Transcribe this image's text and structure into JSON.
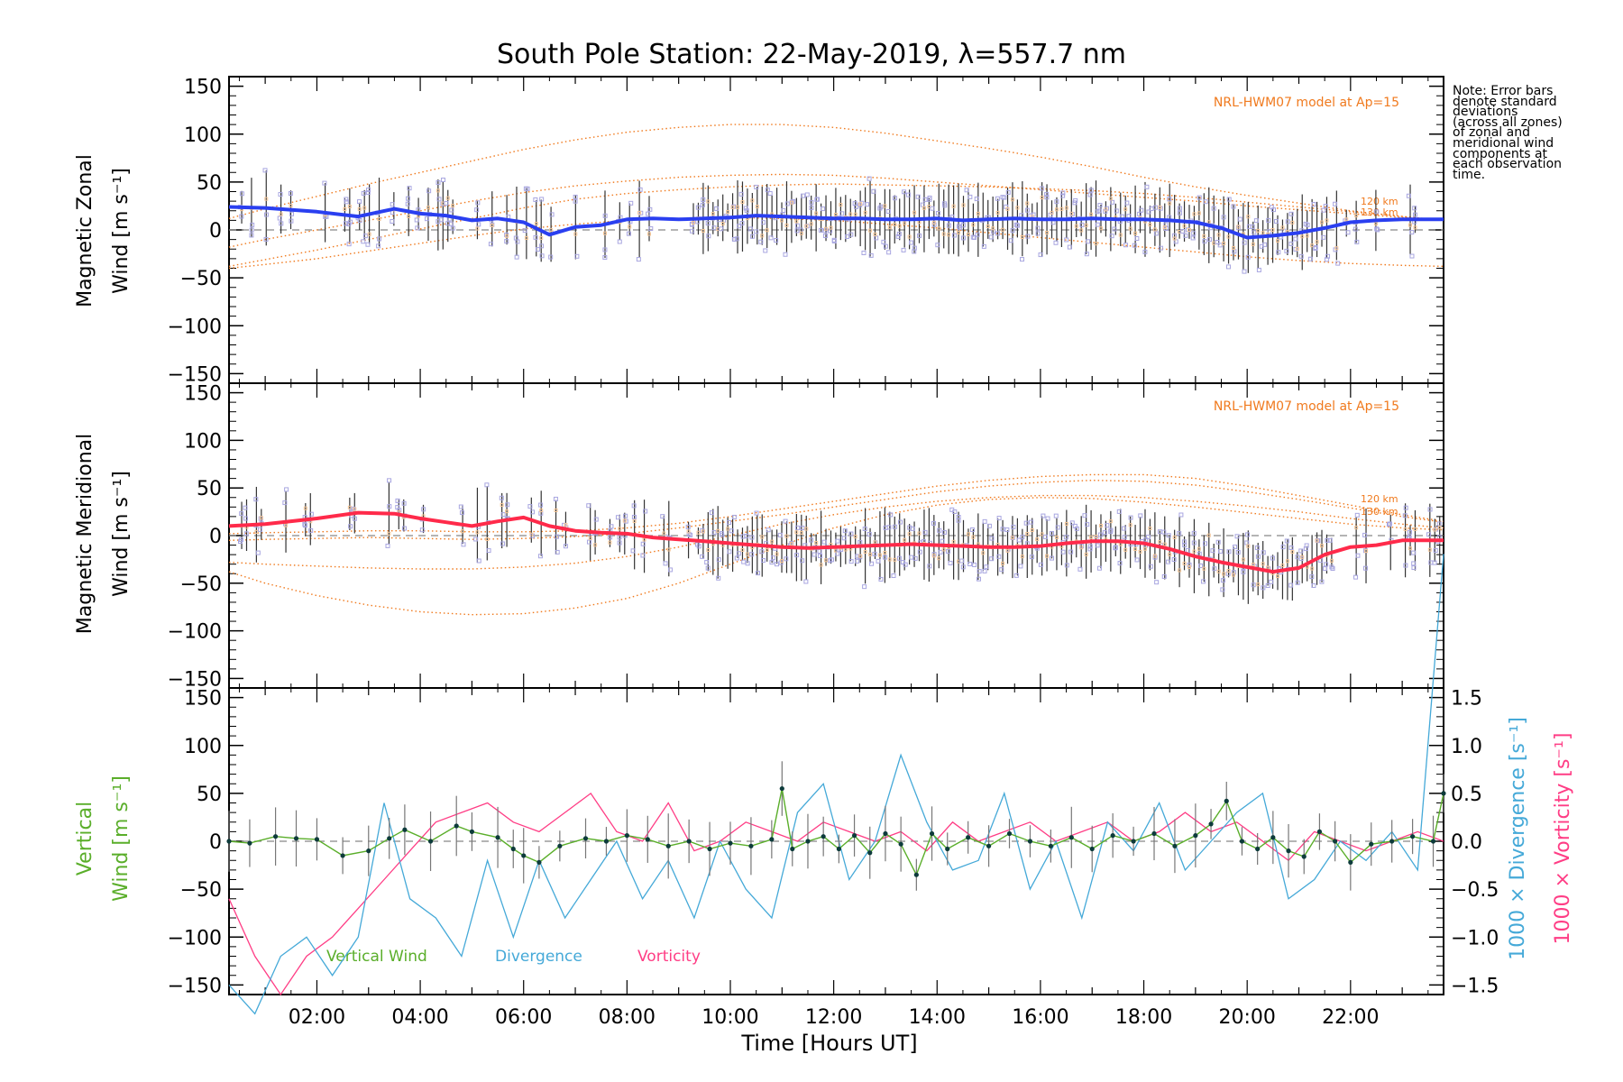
{
  "title": "South Pole Station: 22-May-2019, λ=557.7 nm",
  "note_lines": [
    "Note: Error bars",
    "denote standard",
    "deviations",
    "(across all zones)",
    "of zonal and",
    "meridional wind",
    "components at",
    "each observation",
    "time."
  ],
  "colors": {
    "zonal": "#2a3ff0",
    "zonal_light": "#3a9ff0",
    "meridional": "#ff2a4a",
    "meridional_light": "#ff6f86",
    "vertical": "#5aae2a",
    "divergence": "#45a9d8",
    "vorticity": "#ff3d85",
    "model": "#f07a1e",
    "scatter": "#a8a6e0",
    "errbar": "#333333",
    "point": "#0d3b3b"
  },
  "chart_data": [
    {
      "type": "line",
      "name": "zonal",
      "ylabel_lines": [
        "Magnetic Zonal",
        "Wind [m s⁻¹]"
      ],
      "ylim": [
        -160,
        160
      ],
      "yticks": [
        150,
        100,
        50,
        0,
        -50,
        -100,
        -150
      ],
      "ytick_labels": [
        "150",
        "100",
        "50",
        "0",
        "−50",
        "−100",
        "−150"
      ],
      "xlim": [
        0.3,
        23.8
      ],
      "model_label": "NRL-HWM07 model at Ap=15",
      "model_alt_labels": [
        "120 km",
        "130 km"
      ],
      "series": [
        {
          "name": "Zonal wind",
          "x": [
            0.3,
            1.0,
            2.0,
            2.8,
            3.5,
            4.0,
            4.5,
            5.0,
            5.5,
            6.0,
            6.5,
            7.0,
            7.5,
            8.0,
            8.5,
            9.0,
            9.5,
            10.0,
            10.5,
            11.0,
            11.5,
            12.0,
            12.5,
            13.0,
            13.5,
            14.0,
            14.5,
            15.0,
            15.5,
            16.0,
            16.5,
            17.0,
            17.5,
            18.0,
            18.5,
            19.0,
            19.5,
            20.0,
            20.5,
            21.0,
            21.5,
            22.0,
            22.5,
            23.0,
            23.8
          ],
          "y": [
            24,
            23,
            19,
            14,
            22,
            17,
            15,
            10,
            12,
            8,
            -5,
            3,
            5,
            11,
            12,
            11,
            12,
            13,
            15,
            14,
            13,
            12,
            12,
            11,
            11,
            12,
            10,
            11,
            12,
            11,
            11,
            12,
            11,
            11,
            10,
            8,
            2,
            -8,
            -6,
            -3,
            2,
            8,
            10,
            11,
            11
          ]
        },
        {
          "name": "NRL-HWM07 120 km",
          "x": [
            0.3,
            1,
            2,
            3,
            4,
            5,
            6,
            7,
            8,
            9,
            10,
            11,
            12,
            13,
            14,
            15,
            16,
            17,
            18,
            19,
            20,
            21,
            22,
            23,
            23.8
          ],
          "y": [
            -38,
            -31,
            -21,
            -10,
            1,
            12,
            23,
            32,
            38,
            42,
            45,
            47,
            48,
            47,
            46,
            45,
            43,
            41,
            38,
            34,
            29,
            24,
            19,
            14,
            10
          ]
        },
        {
          "name": "NRL-HWM07 130 km",
          "x": [
            0.3,
            1,
            2,
            3,
            4,
            5,
            6,
            7,
            8,
            9,
            10,
            11,
            12,
            13,
            14,
            15,
            16,
            17,
            18,
            19,
            20,
            21,
            22,
            23,
            23.8
          ],
          "y": [
            -18,
            -10,
            0,
            10,
            20,
            30,
            39,
            46,
            51,
            55,
            57,
            58,
            57,
            54,
            50,
            46,
            42,
            38,
            34,
            30,
            25,
            21,
            17,
            13,
            10
          ]
        },
        {
          "name": "NRL-HWM07 upper",
          "x": [
            0.3,
            1,
            2,
            3,
            4,
            5,
            6,
            7,
            8,
            9,
            10,
            11,
            12,
            13,
            14,
            15,
            16,
            17,
            18,
            19,
            20,
            21,
            22,
            23,
            23.8
          ],
          "y": [
            12,
            22,
            35,
            48,
            60,
            72,
            84,
            94,
            102,
            107,
            110,
            110,
            107,
            101,
            93,
            85,
            76,
            66,
            55,
            45,
            36,
            28,
            20,
            14,
            10
          ]
        },
        {
          "name": "NRL-HWM07 lower",
          "x": [
            0.3,
            1,
            2,
            3,
            4,
            5,
            6,
            7,
            8,
            9,
            10,
            11,
            12,
            13,
            14,
            15,
            16,
            17,
            18,
            19,
            20,
            21,
            22,
            23,
            23.8
          ],
          "y": [
            -40,
            -36,
            -30,
            -22,
            -14,
            -6,
            1,
            6,
            10,
            12,
            13,
            12,
            10,
            6,
            2,
            -3,
            -8,
            -13,
            -18,
            -23,
            -28,
            -32,
            -35,
            -37,
            -38
          ]
        }
      ]
    },
    {
      "type": "line",
      "name": "meridional",
      "ylabel_lines": [
        "Magnetic Meridional",
        "Wind [m s⁻¹]"
      ],
      "ylim": [
        -160,
        160
      ],
      "yticks": [
        150,
        100,
        50,
        0,
        -50,
        -100,
        -150
      ],
      "ytick_labels": [
        "150",
        "100",
        "50",
        "0",
        "−50",
        "−100",
        "−150"
      ],
      "xlim": [
        0.3,
        23.8
      ],
      "model_label": "NRL-HWM07 model at Ap=15",
      "model_alt_labels": [
        "120 km",
        "130 km"
      ],
      "series": [
        {
          "name": "Meridional wind",
          "x": [
            0.3,
            1.0,
            2.0,
            2.8,
            3.5,
            4.0,
            4.5,
            5.0,
            5.5,
            6.0,
            6.5,
            7.0,
            7.5,
            8.0,
            8.5,
            9.0,
            9.5,
            10.0,
            10.5,
            11.0,
            11.5,
            12.0,
            12.5,
            13.0,
            13.5,
            14.0,
            14.5,
            15.0,
            15.5,
            16.0,
            16.5,
            17.0,
            17.5,
            18.0,
            18.5,
            19.0,
            19.5,
            20.0,
            20.5,
            21.0,
            21.5,
            22.0,
            22.5,
            23.0,
            23.8
          ],
          "y": [
            10,
            12,
            18,
            24,
            23,
            18,
            14,
            10,
            15,
            19,
            10,
            5,
            3,
            2,
            -2,
            -4,
            -6,
            -8,
            -10,
            -12,
            -13,
            -12,
            -11,
            -10,
            -9,
            -10,
            -11,
            -12,
            -12,
            -11,
            -8,
            -6,
            -6,
            -8,
            -14,
            -22,
            -28,
            -33,
            -38,
            -34,
            -20,
            -12,
            -10,
            -5,
            -5
          ]
        },
        {
          "name": "NRL-HWM07 120 km",
          "x": [
            0.3,
            1,
            2,
            3,
            4,
            5,
            6,
            7,
            8,
            9,
            10,
            11,
            12,
            13,
            14,
            15,
            16,
            17,
            18,
            19,
            20,
            21,
            22,
            23,
            23.8
          ],
          "y": [
            2,
            3,
            4,
            5,
            5,
            4,
            4,
            5,
            8,
            13,
            20,
            28,
            36,
            44,
            52,
            58,
            62,
            64,
            64,
            60,
            52,
            42,
            32,
            22,
            15
          ]
        },
        {
          "name": "NRL-HWM07 130 km",
          "x": [
            0.3,
            1,
            2,
            3,
            4,
            5,
            6,
            7,
            8,
            9,
            10,
            11,
            12,
            13,
            14,
            15,
            16,
            17,
            18,
            19,
            20,
            21,
            22,
            23,
            23.8
          ],
          "y": [
            -5,
            -4,
            -3,
            -2,
            -3,
            -4,
            -3,
            -1,
            2,
            8,
            15,
            22,
            30,
            38,
            46,
            52,
            56,
            58,
            57,
            53,
            46,
            38,
            29,
            20,
            14
          ]
        },
        {
          "name": "NRL-HWM07 lower",
          "x": [
            0.3,
            1,
            2,
            3,
            4,
            5,
            6,
            7,
            8,
            9,
            10,
            11,
            12,
            13,
            14,
            15,
            16,
            17,
            18,
            19,
            20,
            21,
            22,
            23,
            23.8
          ],
          "y": [
            -38,
            -50,
            -63,
            -73,
            -80,
            -83,
            -82,
            -76,
            -66,
            -50,
            -30,
            -10,
            8,
            22,
            32,
            38,
            40,
            39,
            35,
            30,
            24,
            18,
            12,
            8,
            6
          ]
        },
        {
          "name": "NRL-HWM07 mid",
          "x": [
            0.3,
            1,
            2,
            3,
            4,
            5,
            6,
            7,
            8,
            9,
            10,
            11,
            12,
            13,
            14,
            15,
            16,
            17,
            18,
            19,
            20,
            21,
            22,
            23,
            23.8
          ],
          "y": [
            -28,
            -30,
            -32,
            -34,
            -35,
            -35,
            -33,
            -29,
            -22,
            -12,
            0,
            12,
            22,
            30,
            36,
            40,
            42,
            42,
            40,
            36,
            31,
            25,
            18,
            12,
            8
          ]
        }
      ]
    },
    {
      "type": "line",
      "name": "vertical",
      "ylabel_lines": [
        "Vertical",
        "Wind [m s⁻¹]"
      ],
      "ylim": [
        -160,
        160
      ],
      "yticks": [
        150,
        100,
        50,
        0,
        -50,
        -100,
        -150
      ],
      "ytick_labels": [
        "150",
        "100",
        "50",
        "0",
        "−50",
        "−100",
        "−150"
      ],
      "y2lim": [
        -1.6,
        1.6
      ],
      "y2ticks": [
        1.5,
        1.0,
        0.5,
        0.0,
        -0.5,
        -1.0,
        -1.5
      ],
      "y2tick_labels": [
        "1.5",
        "1.0",
        "0.5",
        "0.0",
        "−0.5",
        "−1.0",
        "−1.5"
      ],
      "y2label_div": "1000 × Divergence [s⁻¹]",
      "y2label_vort": "1000 × Vorticity [s⁻¹]",
      "xlim": [
        0.3,
        23.8
      ],
      "xticks": [
        2,
        4,
        6,
        8,
        10,
        12,
        14,
        16,
        18,
        20,
        22
      ],
      "xtick_labels": [
        "02:00",
        "04:00",
        "06:00",
        "08:00",
        "10:00",
        "12:00",
        "14:00",
        "16:00",
        "18:00",
        "20:00",
        "22:00"
      ],
      "xlabel": "Time [Hours UT]",
      "legend": [
        "Vertical Wind",
        "Divergence",
        "Vorticity"
      ],
      "series": [
        {
          "name": "Vertical Wind",
          "x": [
            0.3,
            0.7,
            1.2,
            1.6,
            2.0,
            2.5,
            3.0,
            3.4,
            3.7,
            4.2,
            4.7,
            5.0,
            5.5,
            5.8,
            6.0,
            6.3,
            6.7,
            7.2,
            7.6,
            8.0,
            8.4,
            8.8,
            9.2,
            9.6,
            10.0,
            10.4,
            10.8,
            11.0,
            11.2,
            11.5,
            11.8,
            12.1,
            12.4,
            12.7,
            13.0,
            13.3,
            13.6,
            13.9,
            14.2,
            14.6,
            15.0,
            15.4,
            15.8,
            16.2,
            16.6,
            17.0,
            17.4,
            17.8,
            18.2,
            18.6,
            19.0,
            19.3,
            19.6,
            19.9,
            20.2,
            20.5,
            20.8,
            21.1,
            21.4,
            21.7,
            22.0,
            22.4,
            22.8,
            23.2,
            23.6,
            23.8
          ],
          "y": [
            0,
            -2,
            5,
            3,
            2,
            -15,
            -10,
            3,
            12,
            0,
            16,
            10,
            4,
            -8,
            -15,
            -22,
            -5,
            3,
            0,
            6,
            2,
            -5,
            0,
            -8,
            -2,
            -5,
            2,
            55,
            -8,
            0,
            5,
            -8,
            6,
            -12,
            8,
            -3,
            -35,
            8,
            -8,
            4,
            -5,
            8,
            0,
            -5,
            4,
            -8,
            6,
            0,
            8,
            -5,
            6,
            18,
            42,
            0,
            -8,
            4,
            -10,
            -16,
            10,
            0,
            -22,
            -3,
            0,
            5,
            0,
            50
          ]
        },
        {
          "name": "Divergence",
          "x": [
            0.3,
            0.8,
            1.3,
            1.8,
            2.3,
            2.8,
            3.3,
            3.8,
            4.3,
            4.8,
            5.3,
            5.8,
            6.3,
            6.8,
            7.3,
            7.8,
            8.3,
            8.8,
            9.3,
            9.8,
            10.3,
            10.8,
            11.3,
            11.8,
            12.3,
            12.8,
            13.3,
            13.8,
            14.3,
            14.8,
            15.3,
            15.8,
            16.3,
            16.8,
            17.3,
            17.8,
            18.3,
            18.8,
            19.3,
            19.8,
            20.3,
            20.8,
            21.3,
            21.8,
            22.3,
            22.8,
            23.3,
            23.8
          ],
          "y": [
            -1.5,
            -1.8,
            -1.2,
            -1.0,
            -1.4,
            -1.0,
            0.4,
            -0.6,
            -0.8,
            -1.2,
            -0.2,
            -1.0,
            -0.2,
            -0.8,
            -0.4,
            0.0,
            -0.6,
            -0.2,
            -0.8,
            0.0,
            -0.5,
            -0.8,
            0.3,
            0.6,
            -0.4,
            0.0,
            0.9,
            0.2,
            -0.3,
            -0.2,
            0.5,
            -0.5,
            0.0,
            -0.8,
            0.2,
            -0.1,
            0.4,
            -0.3,
            0.0,
            0.3,
            0.5,
            -0.6,
            -0.4,
            0.0,
            -0.2,
            0.1,
            -0.3,
            3.0
          ]
        },
        {
          "name": "Vorticity",
          "x": [
            0.3,
            0.8,
            1.3,
            1.8,
            2.3,
            2.8,
            3.3,
            3.8,
            4.3,
            4.8,
            5.3,
            5.8,
            6.3,
            6.8,
            7.3,
            7.8,
            8.3,
            8.8,
            9.3,
            9.8,
            10.3,
            10.8,
            11.3,
            11.8,
            12.3,
            12.8,
            13.3,
            13.8,
            14.3,
            14.8,
            15.3,
            15.8,
            16.3,
            16.8,
            17.3,
            17.8,
            18.3,
            18.8,
            19.3,
            19.8,
            20.3,
            20.8,
            21.3,
            21.8,
            22.3,
            22.8,
            23.3,
            23.8
          ],
          "y": [
            -0.6,
            -1.2,
            -1.6,
            -1.2,
            -1.0,
            -0.7,
            -0.4,
            -0.1,
            0.2,
            0.3,
            0.4,
            0.2,
            0.1,
            0.3,
            0.5,
            0.1,
            0.0,
            0.4,
            -0.1,
            0.0,
            0.2,
            0.1,
            0.0,
            0.2,
            0.1,
            0.0,
            0.1,
            -0.1,
            0.2,
            0.0,
            0.1,
            0.2,
            0.0,
            0.1,
            0.2,
            0.0,
            0.1,
            0.3,
            0.1,
            0.2,
            0.0,
            -0.2,
            0.1,
            0.0,
            -0.1,
            0.0,
            0.1,
            0.0
          ]
        }
      ]
    }
  ]
}
